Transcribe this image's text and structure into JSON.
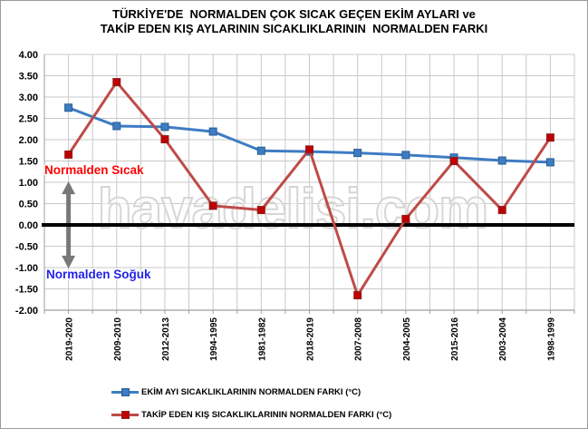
{
  "title": {
    "line1": "TÜRKİYE'DE  NORMALDEN ÇOK SICAK GEÇEN EKİM AYLARI ve",
    "line2": "TAKİP EDEN KIŞ AYLARININ SICAKLIKLARININ  NORMALDEN FARKI"
  },
  "watermark": {
    "text": "havadelisi.com"
  },
  "annotations": {
    "above_normal": "Normalden Sıcak",
    "below_normal": "Normalden Soğuk"
  },
  "chart_data": {
    "type": "line",
    "title": "TÜRKİYE'DE NORMALDEN ÇOK SICAK GEÇEN EKİM AYLARI ve TAKİP EDEN KIŞ AYLARININ SICAKLIKLARININ NORMALDEN FARKI",
    "categories": [
      "2019-2020",
      "2009-2010",
      "2012-2013",
      "1994-1995",
      "1981-1982",
      "2018-2019",
      "2007-2008",
      "2004-2005",
      "2015-2016",
      "2003-2004",
      "1998-1999"
    ],
    "series": [
      {
        "name": "EKİM AYI SICAKLIKLARININ NORMALDEN FARKI (°C)",
        "color": "#3E7CC3",
        "marker_color": "#3E7CC3",
        "marker_border": "#2A5E92",
        "values": [
          2.75,
          2.32,
          2.3,
          2.19,
          1.74,
          1.72,
          1.69,
          1.64,
          1.58,
          1.51,
          1.47
        ]
      },
      {
        "name": "TAKİP EDEN KIŞ SICAKLIKLARININ NORMALDEN FARKI (°C)",
        "color": "#BE4B48",
        "marker_color": "#C00000",
        "marker_border": "#8B2220",
        "values": [
          1.65,
          3.35,
          2.01,
          0.45,
          0.35,
          1.77,
          -1.65,
          0.14,
          1.5,
          0.35,
          2.05
        ]
      }
    ],
    "ylim": [
      -2.0,
      4.0
    ],
    "ytick_step": 0.5,
    "ytick_decimals": 2,
    "grid": true,
    "zero_line_value": 0.0,
    "x_label_rotation_deg": 90,
    "legend_position": "bottom"
  },
  "style_colors": {
    "grid": "#C9C9C9",
    "axis": "#9E9E9E",
    "zero_line": "#000000",
    "arrow": "#787878",
    "warm_text": "#FF0000",
    "cold_text": "#2323E8",
    "watermark_outline": "#D6D6D6"
  }
}
